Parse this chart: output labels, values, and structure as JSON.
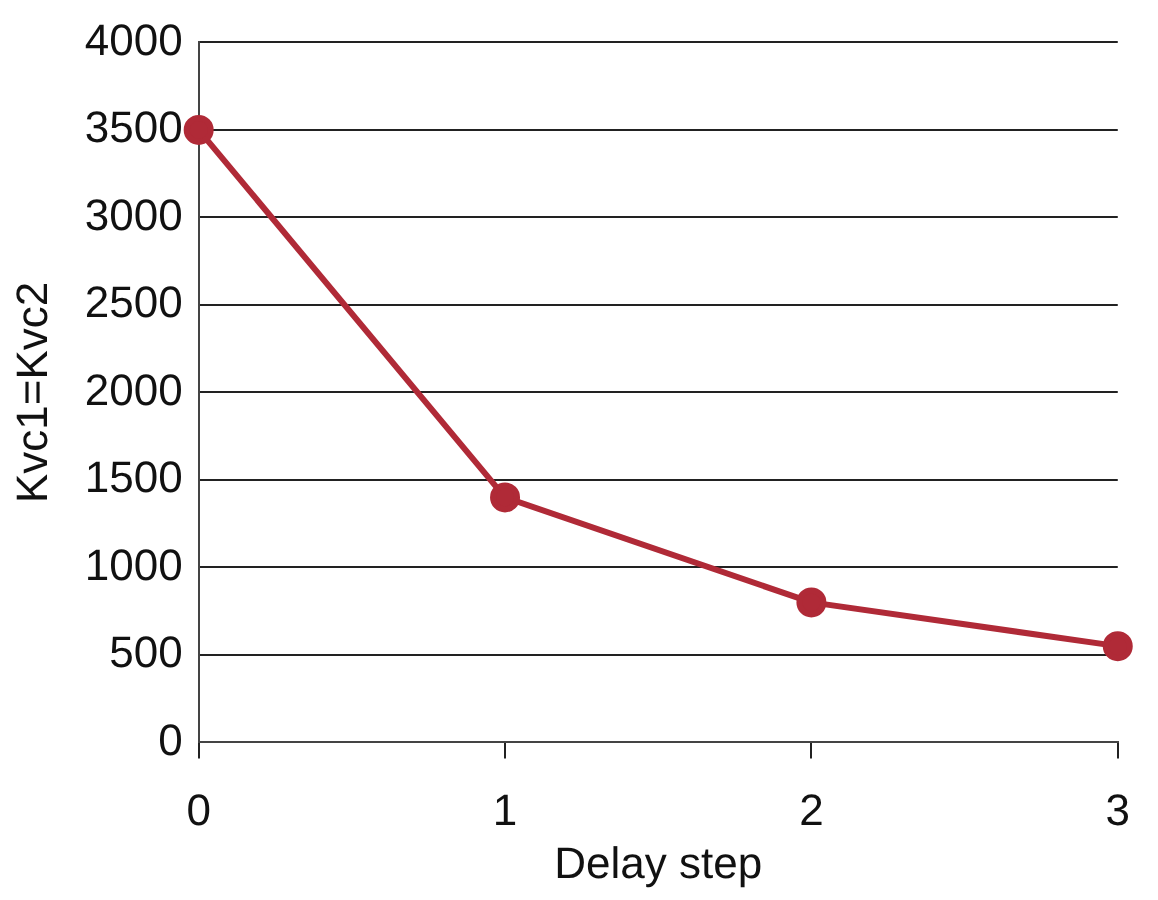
{
  "chart_data": {
    "type": "line",
    "xlabel": "Delay step",
    "ylabel": "Kvc1=Kvc2",
    "x": [
      0,
      1,
      2,
      3
    ],
    "series": [
      {
        "color": "#b02a37",
        "values": [
          3500,
          1400,
          800,
          550
        ]
      }
    ],
    "xlim": [
      0,
      3
    ],
    "xticks": [
      0,
      1,
      2,
      3
    ],
    "ylim": [
      0,
      4000
    ],
    "yticks": [
      0,
      500,
      1000,
      1500,
      2000,
      2500,
      3000,
      3500,
      4000
    ],
    "grid": "y",
    "legend": false,
    "marker": "circle",
    "line_style": "solid"
  }
}
